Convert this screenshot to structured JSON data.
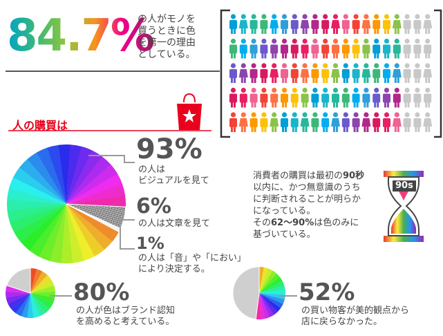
{
  "headline": {
    "percent": "84.7%",
    "caption_lines": [
      "の人がモノを",
      "買うときに色",
      "を第一の理由",
      "としている。"
    ],
    "colored_fraction": 0.847
  },
  "section_title": "人の購買は",
  "stats": [
    {
      "percent": "93%",
      "lines": [
        "の人は",
        "ビジュアルを見て"
      ]
    },
    {
      "percent": "6%",
      "lines": [
        "の人は文章を見て"
      ]
    },
    {
      "percent": "1%",
      "lines": [
        "の人は「音」や「におい」",
        "により決定する。"
      ]
    },
    {
      "percent": "80%",
      "lines": [
        "の人が色はブランド認知",
        "を高めると考えている。"
      ]
    },
    {
      "percent": "52%",
      "lines": [
        "の買い物客が美的観点から",
        "店に戻らなかった。"
      ]
    }
  ],
  "note": {
    "line1_pre": "消費者の購買は最初の",
    "line1_bold": "90秒",
    "line2": "以内に、かつ無意識のうち",
    "line3": "に判断されることが明らか",
    "line4": "になっている。",
    "line5_pre": "その",
    "line5_bold": "62〜90%",
    "line5_post": "は色のみに",
    "line6": "基づいている。"
  },
  "hourglass_label": "90s",
  "chart_data": [
    {
      "type": "pie",
      "series": [
        {
          "values": [
            93,
            6,
            1
          ]
        }
      ]
    },
    {
      "type": "pie",
      "series": [
        {
          "values": [
            80,
            20
          ]
        }
      ]
    },
    {
      "type": "pie",
      "series": [
        {
          "values": [
            52,
            48
          ]
        }
      ]
    }
  ],
  "colors": {
    "accent": "#e8001c",
    "gray": "#c8c8c8",
    "dark": "#555555"
  }
}
